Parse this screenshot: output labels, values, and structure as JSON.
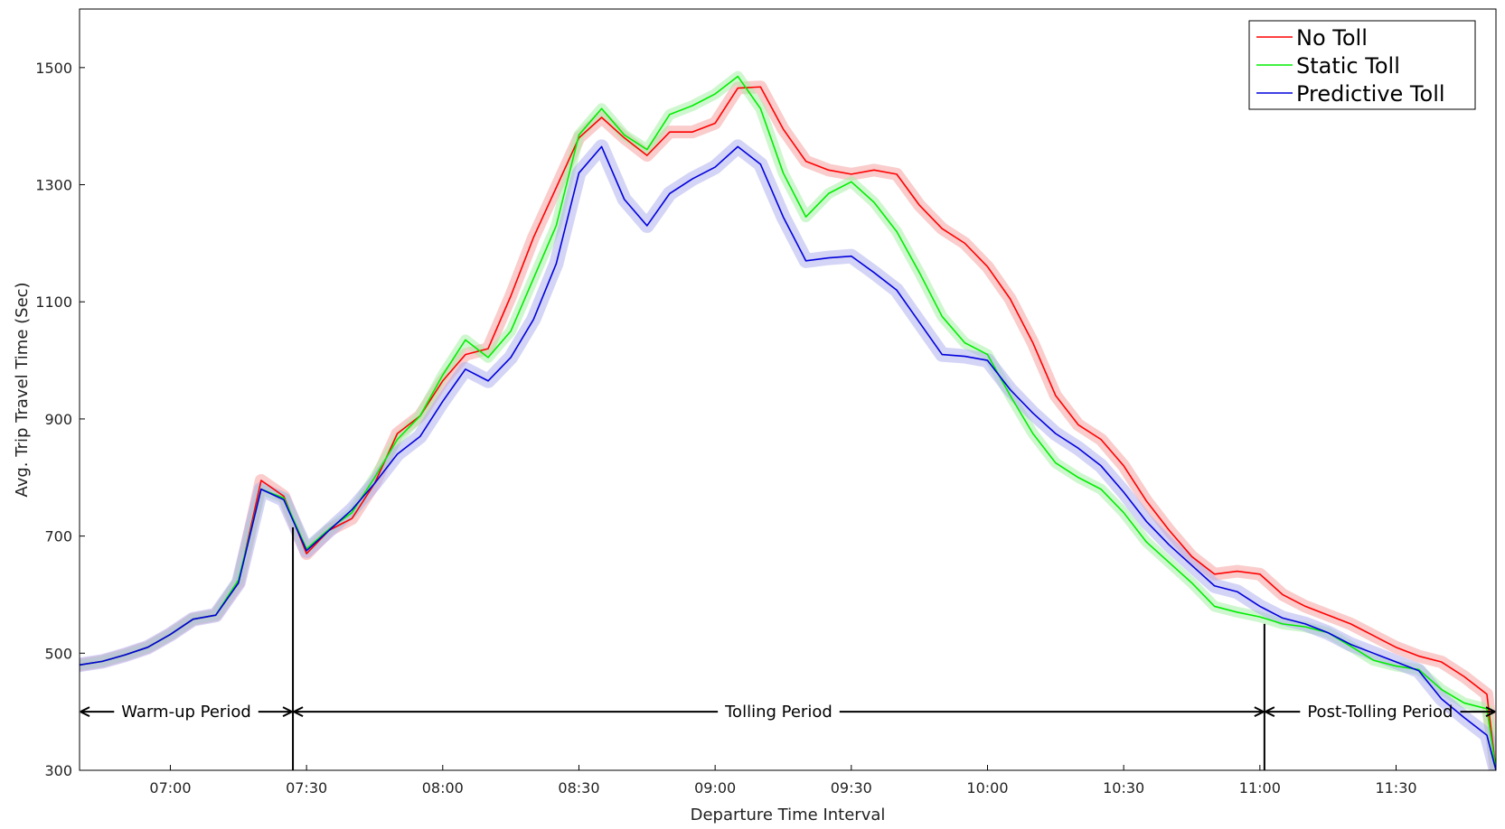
{
  "chart_data": {
    "type": "line",
    "title": "",
    "xlabel": "Departure Time Interval",
    "ylabel": "Avg. Trip Travel Time (Sec)",
    "ylim": [
      300,
      1600
    ],
    "xlim": [
      "06:40",
      "11:52"
    ],
    "grid": false,
    "legend_position": "top-right",
    "x_ticks": [
      "07:00",
      "07:30",
      "08:00",
      "08:30",
      "09:00",
      "09:30",
      "10:00",
      "10:30",
      "11:00",
      "11:30"
    ],
    "y_ticks": [
      300,
      500,
      700,
      900,
      1100,
      1300,
      1500
    ],
    "x": [
      "06:40",
      "06:45",
      "06:50",
      "06:55",
      "07:00",
      "07:05",
      "07:10",
      "07:15",
      "07:20",
      "07:25",
      "07:30",
      "07:35",
      "07:40",
      "07:45",
      "07:50",
      "07:55",
      "08:00",
      "08:05",
      "08:10",
      "08:15",
      "08:20",
      "08:25",
      "08:30",
      "08:35",
      "08:40",
      "08:45",
      "08:50",
      "08:55",
      "09:00",
      "09:05",
      "09:10",
      "09:15",
      "09:20",
      "09:25",
      "09:30",
      "09:35",
      "09:40",
      "09:45",
      "09:50",
      "09:55",
      "10:00",
      "10:05",
      "10:10",
      "10:15",
      "10:20",
      "10:25",
      "10:30",
      "10:35",
      "10:40",
      "10:45",
      "10:50",
      "10:55",
      "11:00",
      "11:05",
      "11:10",
      "11:15",
      "11:20",
      "11:25",
      "11:30",
      "11:35",
      "11:40",
      "11:45",
      "11:50",
      "11:52"
    ],
    "series": [
      {
        "name": "No Toll",
        "color": "#ff0000",
        "band_color": "#f5a3a3",
        "band_width": 14,
        "values": [
          480,
          486,
          497,
          510,
          532,
          558,
          565,
          620,
          795,
          768,
          670,
          710,
          730,
          790,
          875,
          905,
          965,
          1010,
          1020,
          1110,
          1210,
          1295,
          1380,
          1415,
          1380,
          1350,
          1390,
          1390,
          1405,
          1465,
          1467,
          1395,
          1340,
          1325,
          1318,
          1325,
          1318,
          1265,
          1225,
          1200,
          1160,
          1105,
          1030,
          940,
          890,
          865,
          820,
          760,
          710,
          665,
          635,
          640,
          635,
          600,
          580,
          565,
          550,
          530,
          510,
          495,
          485,
          460,
          430,
          300
        ]
      },
      {
        "name": "Static Toll",
        "color": "#00ee00",
        "band_color": "#a8f0a8",
        "band_width": 12,
        "values": [
          480,
          486,
          497,
          510,
          532,
          558,
          565,
          625,
          780,
          765,
          678,
          712,
          740,
          800,
          865,
          905,
          975,
          1035,
          1005,
          1050,
          1140,
          1230,
          1385,
          1430,
          1385,
          1360,
          1420,
          1435,
          1455,
          1485,
          1430,
          1320,
          1245,
          1285,
          1305,
          1270,
          1220,
          1150,
          1075,
          1030,
          1010,
          940,
          875,
          825,
          800,
          780,
          740,
          690,
          655,
          620,
          580,
          570,
          562,
          550,
          545,
          535,
          512,
          488,
          478,
          472,
          438,
          415,
          405,
          300
        ]
      },
      {
        "name": "Predictive Toll",
        "color": "#0000dd",
        "band_color": "#b0b0ee",
        "band_width": 16,
        "values": [
          480,
          486,
          497,
          510,
          532,
          558,
          565,
          620,
          780,
          762,
          675,
          710,
          745,
          790,
          840,
          870,
          930,
          985,
          965,
          1005,
          1070,
          1165,
          1320,
          1365,
          1275,
          1230,
          1285,
          1310,
          1330,
          1365,
          1335,
          1245,
          1170,
          1175,
          1178,
          1150,
          1120,
          1065,
          1010,
          1007,
          1000,
          950,
          910,
          875,
          850,
          820,
          775,
          725,
          685,
          650,
          615,
          605,
          580,
          560,
          550,
          535,
          515,
          500,
          485,
          470,
          422,
          390,
          360,
          300
        ]
      }
    ],
    "periods": [
      {
        "label": "Warm-up Period",
        "start": "06:40",
        "end": "07:27"
      },
      {
        "label": "Tolling Period",
        "start": "07:27",
        "end": "11:01"
      },
      {
        "label": "Post-Tolling Period",
        "start": "11:01",
        "end": "11:52"
      }
    ],
    "period_arrow_y": 400,
    "boundary_lines": [
      {
        "time": "07:27",
        "top": 715
      },
      {
        "time": "11:01",
        "top": 550
      }
    ]
  }
}
